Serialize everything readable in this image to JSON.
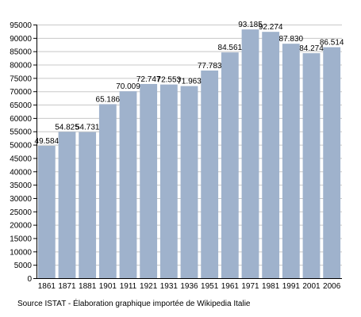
{
  "chart_data": {
    "type": "bar",
    "categories": [
      "1861",
      "1871",
      "1881",
      "1901",
      "1911",
      "1921",
      "1931",
      "1936",
      "1951",
      "1961",
      "1971",
      "1981",
      "1991",
      "2001",
      "2006"
    ],
    "values": [
      49584,
      54825,
      54731,
      65186,
      70009,
      72747,
      72553,
      71963,
      77783,
      84561,
      93185,
      92274,
      87830,
      84274,
      86514
    ],
    "value_labels": [
      "49.584",
      "54.825",
      "54.731",
      "65.186",
      "70.009",
      "72.747",
      "72.553",
      "71.963",
      "77.783",
      "84.561",
      "93.185",
      "92.274",
      "87.830",
      "84.274",
      "86.514"
    ],
    "ylim": [
      0,
      95000
    ],
    "ytick_step": 5000,
    "grid": true,
    "title": "",
    "xlabel": "",
    "ylabel": "",
    "bar_color": "#9fb2cc",
    "grid_color": "#c8c8c8"
  },
  "source_text": "Source ISTAT - Élaboration graphique importée de Wikipedia Italie"
}
